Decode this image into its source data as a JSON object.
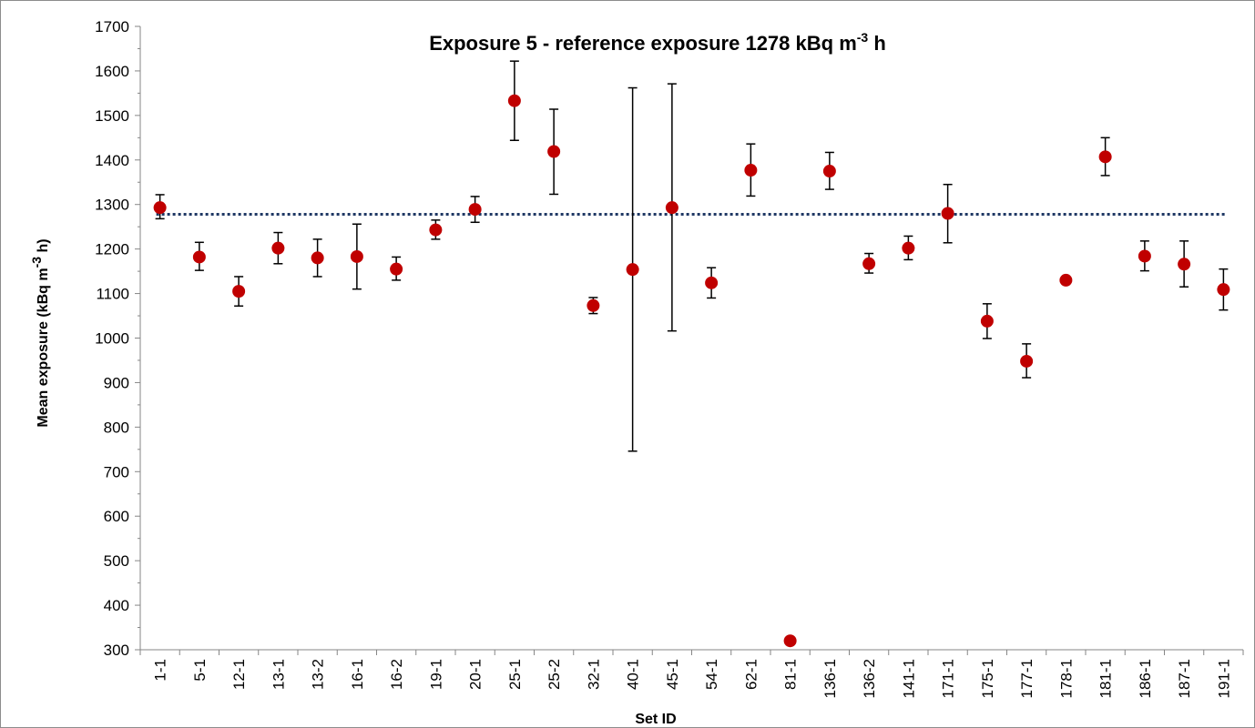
{
  "chart_data": {
    "type": "scatter",
    "title": {
      "main": "Exposure 5 - reference exposure 1278 kBq m",
      "sup": "-3",
      "tail": " h"
    },
    "xlabel": "Set  ID",
    "ylabel": {
      "main": "Mean exposure (kBq m",
      "sup": "-3",
      "tail": " h)"
    },
    "ylim": [
      300,
      1700
    ],
    "yticks": [
      "300",
      "400",
      "500",
      "600",
      "700",
      "800",
      "900",
      "1000",
      "1100",
      "1200",
      "1300",
      "1400",
      "1500",
      "1600",
      "1700"
    ],
    "categories": [
      "1-1",
      "5-1",
      "12-1",
      "13-1",
      "13-2",
      "16-1",
      "16-2",
      "19-1",
      "20-1",
      "25-1",
      "25-2",
      "32-1",
      "40-1",
      "45-1",
      "54-1",
      "62-1",
      "81-1",
      "136-1",
      "136-2",
      "141-1",
      "171-1",
      "175-1",
      "177-1",
      "178-1",
      "181-1",
      "186-1",
      "187-1",
      "191-1"
    ],
    "values": [
      1293,
      1182,
      1105,
      1202,
      1180,
      1183,
      1155,
      1243,
      1289,
      1533,
      1419,
      1073,
      1154,
      1293,
      1124,
      1377,
      320,
      1375,
      1167,
      1202,
      1280,
      1038,
      948,
      1130,
      1407,
      1184,
      1166,
      1109
    ],
    "error_low": [
      1268,
      1152,
      1072,
      1167,
      1138,
      1110,
      1130,
      1222,
      1260,
      1444,
      1323,
      1055,
      746,
      1016,
      1090,
      1319,
      320,
      1334,
      1146,
      1176,
      1214,
      999,
      911,
      1130,
      1365,
      1151,
      1115,
      1063
    ],
    "error_high": [
      1322,
      1215,
      1138,
      1237,
      1222,
      1256,
      1182,
      1265,
      1318,
      1622,
      1514,
      1091,
      1562,
      1571,
      1158,
      1436,
      320,
      1417,
      1190,
      1229,
      1345,
      1077,
      987,
      1130,
      1450,
      1218,
      1218,
      1155
    ],
    "reference_line": 1278,
    "marker_color": "#c00000",
    "reference_line_color": "#1f3864",
    "grid": false,
    "legend": "none"
  }
}
